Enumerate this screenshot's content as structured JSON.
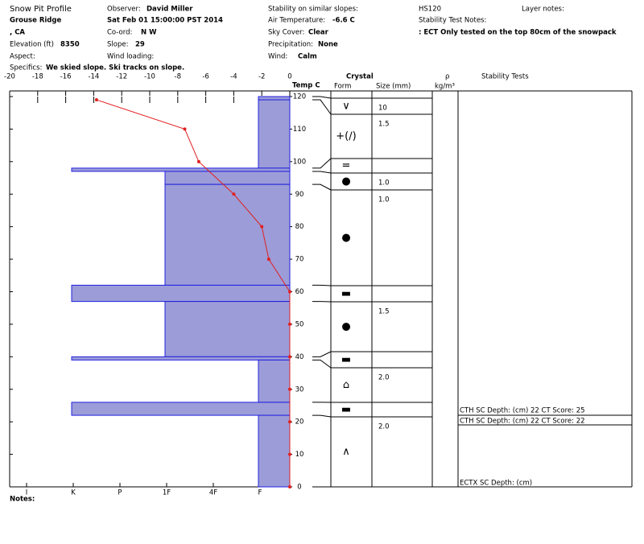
{
  "header": {
    "title": "Snow Pit Profile",
    "location": "Grouse Ridge",
    "region": ", CA",
    "elevation_label": "Elevation (ft)",
    "elevation": 8350,
    "aspect_label": "Aspect:",
    "specifics_label": "Specifics:",
    "specifics": "We skied slope. Ski tracks on slope.",
    "observer_label": "Observer:",
    "observer": "David Miller",
    "datetime": "Sat Feb 01 15:00:00 PST 2014",
    "coord_label": "Co-ord:",
    "coord": "N  W",
    "slope_label": "Slope:",
    "slope": 29,
    "wind_loading_label": "Wind loading:",
    "stability_label": "Stability on similar slopes:",
    "air_temp_label": "Air Temperature:",
    "air_temp": "-6.6 C",
    "sky_label": "Sky Cover:",
    "sky": "Clear",
    "precip_label": "Precipitation:",
    "precip": "None",
    "wind_label": "Wind:",
    "wind": "Calm",
    "hs": "HS120",
    "stability_notes_label": "Stability Test Notes:",
    "stability_notes": ": ECT Only tested on the top 80cm of the snowpack",
    "layer_notes_label": "Layer notes:",
    "notes_label": "Notes:"
  },
  "chart_data": {
    "type": "snowpit",
    "temp_label": "Temp C",
    "crystal_label": "Crystal",
    "form_label": "Form",
    "size_label": "Size (mm)",
    "density_label": "ρ",
    "density_unit": "kg/m³",
    "stability_label": "Stability Tests",
    "xlim": [
      -20,
      0
    ],
    "xticks": [
      -20,
      -18,
      -16,
      -14,
      -12,
      -10,
      -8,
      -6,
      -4,
      -2,
      0
    ],
    "ylim": [
      0,
      120
    ],
    "yticks": [
      0,
      10,
      20,
      30,
      40,
      50,
      60,
      70,
      80,
      90,
      100,
      110,
      120
    ],
    "hardness_scale": [
      "I",
      "K",
      "P",
      "1F",
      "4F",
      "F"
    ],
    "temperature": {
      "color": "#e02020",
      "height": [
        119,
        110,
        100,
        90,
        80,
        70,
        60,
        50,
        40,
        30,
        20,
        10,
        0
      ],
      "temp": [
        -13.8,
        -7.5,
        -6.5,
        -4,
        -2,
        -1.5,
        0,
        0,
        0,
        0,
        0,
        0,
        0
      ]
    },
    "layers": {
      "color": "#9c9cd8",
      "top": [
        120,
        119,
        98,
        97,
        93,
        62,
        57,
        40,
        39,
        26,
        22
      ],
      "bottom": [
        119,
        98,
        97,
        93,
        62,
        57,
        40,
        39,
        26,
        22,
        0
      ],
      "hardness": [
        "F",
        "F",
        "K",
        "1F",
        "1F",
        "K",
        "1F",
        "K",
        "F",
        "K",
        "F"
      ],
      "form": [
        "∨",
        "+(∕)",
        "=",
        "●",
        "●",
        "▬",
        "●",
        "▬",
        "⌂",
        "▬",
        "∧"
      ],
      "size": [
        "10",
        "1.5",
        null,
        "1.0",
        "1.0",
        null,
        "1.5",
        null,
        "2.0",
        null,
        "2.0"
      ]
    },
    "stability_tests": [
      "CTH SC Depth: (cm) 22 CT Score: 25",
      "CTH SC Depth: (cm) 22 CT Score: 22",
      "ECTX SC Depth: (cm)"
    ]
  }
}
